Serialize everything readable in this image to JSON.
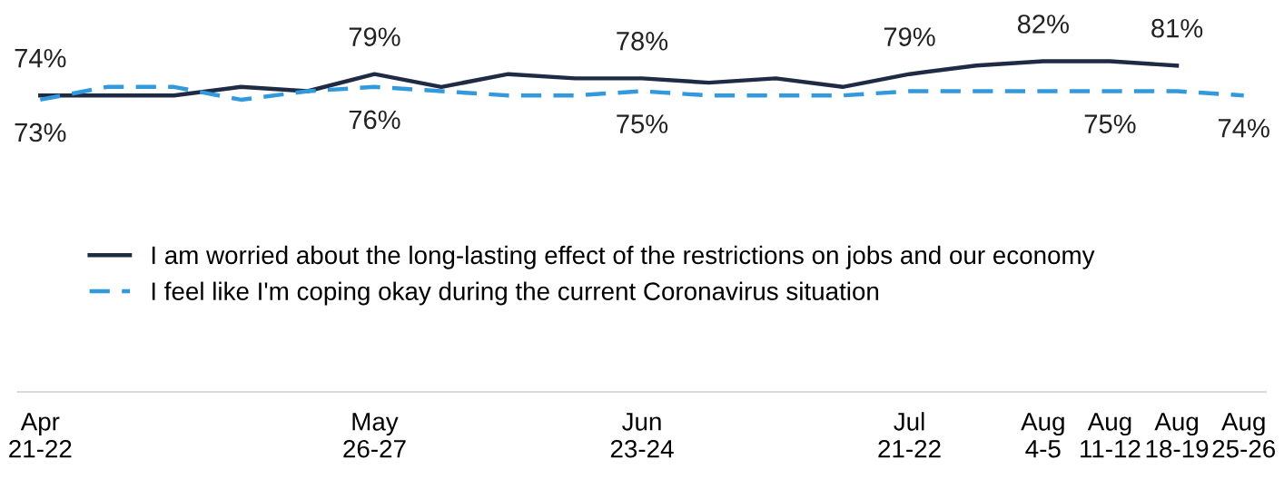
{
  "chart_data": {
    "type": "line",
    "categories": [
      "Apr\n21-22",
      null,
      null,
      null,
      null,
      "May\n26-27",
      null,
      null,
      null,
      "Jun\n23-24",
      null,
      null,
      null,
      "Jul\n21-22",
      null,
      "Aug\n4-5",
      "Aug\n11-12",
      "Aug\n18-19",
      "Aug\n25-26"
    ],
    "series": [
      {
        "name": "I am worried about the long-lasting effect of the restrictions on jobs and our economy",
        "color": "#1f2a44",
        "line_style": "solid",
        "values": [
          74,
          74,
          74,
          76,
          75,
          79,
          76,
          79,
          78,
          78,
          77,
          78,
          76,
          79,
          81,
          82,
          82,
          81,
          null
        ],
        "value_labels": [
          "74%",
          null,
          null,
          null,
          null,
          "79%",
          null,
          null,
          null,
          "78%",
          null,
          null,
          null,
          "79%",
          null,
          "82%",
          null,
          "81%",
          null
        ]
      },
      {
        "name": "I feel like I'm coping okay during the current Coronavirus situation",
        "color": "#3399dd",
        "line_style": "dashed",
        "values": [
          73,
          76,
          76,
          73,
          75,
          76,
          75,
          74,
          74,
          75,
          74,
          74,
          74,
          75,
          75,
          75,
          75,
          75,
          74
        ],
        "value_labels": [
          "73%",
          null,
          null,
          null,
          null,
          "76%",
          null,
          null,
          null,
          "75%",
          null,
          null,
          null,
          null,
          null,
          null,
          "75%",
          null,
          "74%"
        ]
      }
    ],
    "legend": "center",
    "grid": false,
    "marker": "none"
  }
}
